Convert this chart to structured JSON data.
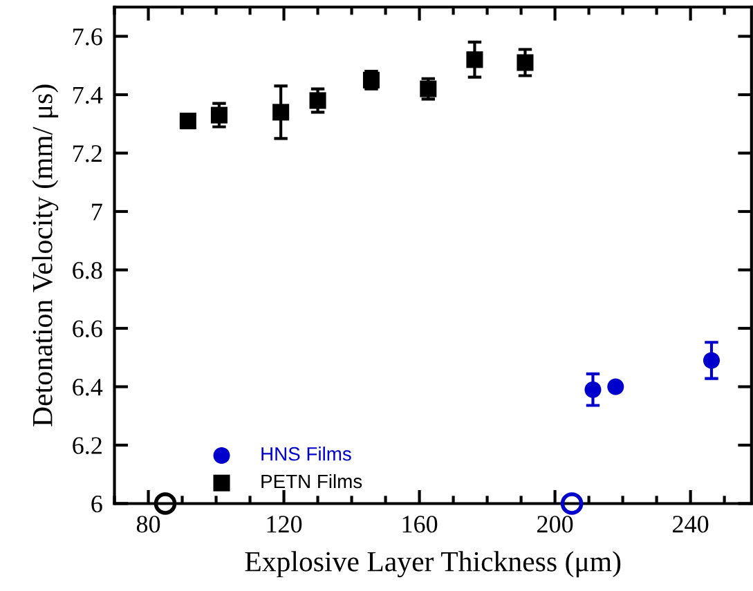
{
  "chart_data": {
    "type": "scatter",
    "xlabel": "Explosive Layer Thickness (μm)",
    "ylabel": "Detonation Velocity (mm/ μs)",
    "xlim": [
      70,
      258
    ],
    "xticks": [
      80,
      120,
      160,
      200,
      240
    ],
    "ylim": [
      6,
      7.7
    ],
    "yticks": [
      6,
      6.2,
      6.4,
      6.6,
      6.8,
      7,
      7.2,
      7.4,
      7.6
    ],
    "grid": false,
    "legend": "bottom left",
    "series": [
      {
        "name": "HNS Films",
        "color": "#0000cc",
        "marker": "circle",
        "x": [
          211.2,
          217.9,
          246.2
        ],
        "values": [
          6.39,
          6.4,
          6.49
        ],
        "errors": [
          0.054,
          null,
          0.062
        ]
      },
      {
        "name": "PETN Films",
        "color": "#000000",
        "marker": "square",
        "x": [
          91.7,
          100.9,
          119.1,
          130.0,
          145.8,
          162.6,
          176.3,
          191.2
        ],
        "values": [
          7.31,
          7.33,
          7.34,
          7.38,
          7.45,
          7.42,
          7.52,
          7.51
        ],
        "errors": [
          null,
          0.04,
          0.09,
          0.04,
          0.03,
          0.035,
          0.06,
          0.045
        ]
      },
      {
        "color": "#000000",
        "marker": "circle",
        "x": [
          85
        ],
        "values": [
          6
        ]
      },
      {
        "color": "#0000cc",
        "marker": "circle",
        "x": [
          205
        ],
        "values": [
          6
        ]
      }
    ]
  }
}
